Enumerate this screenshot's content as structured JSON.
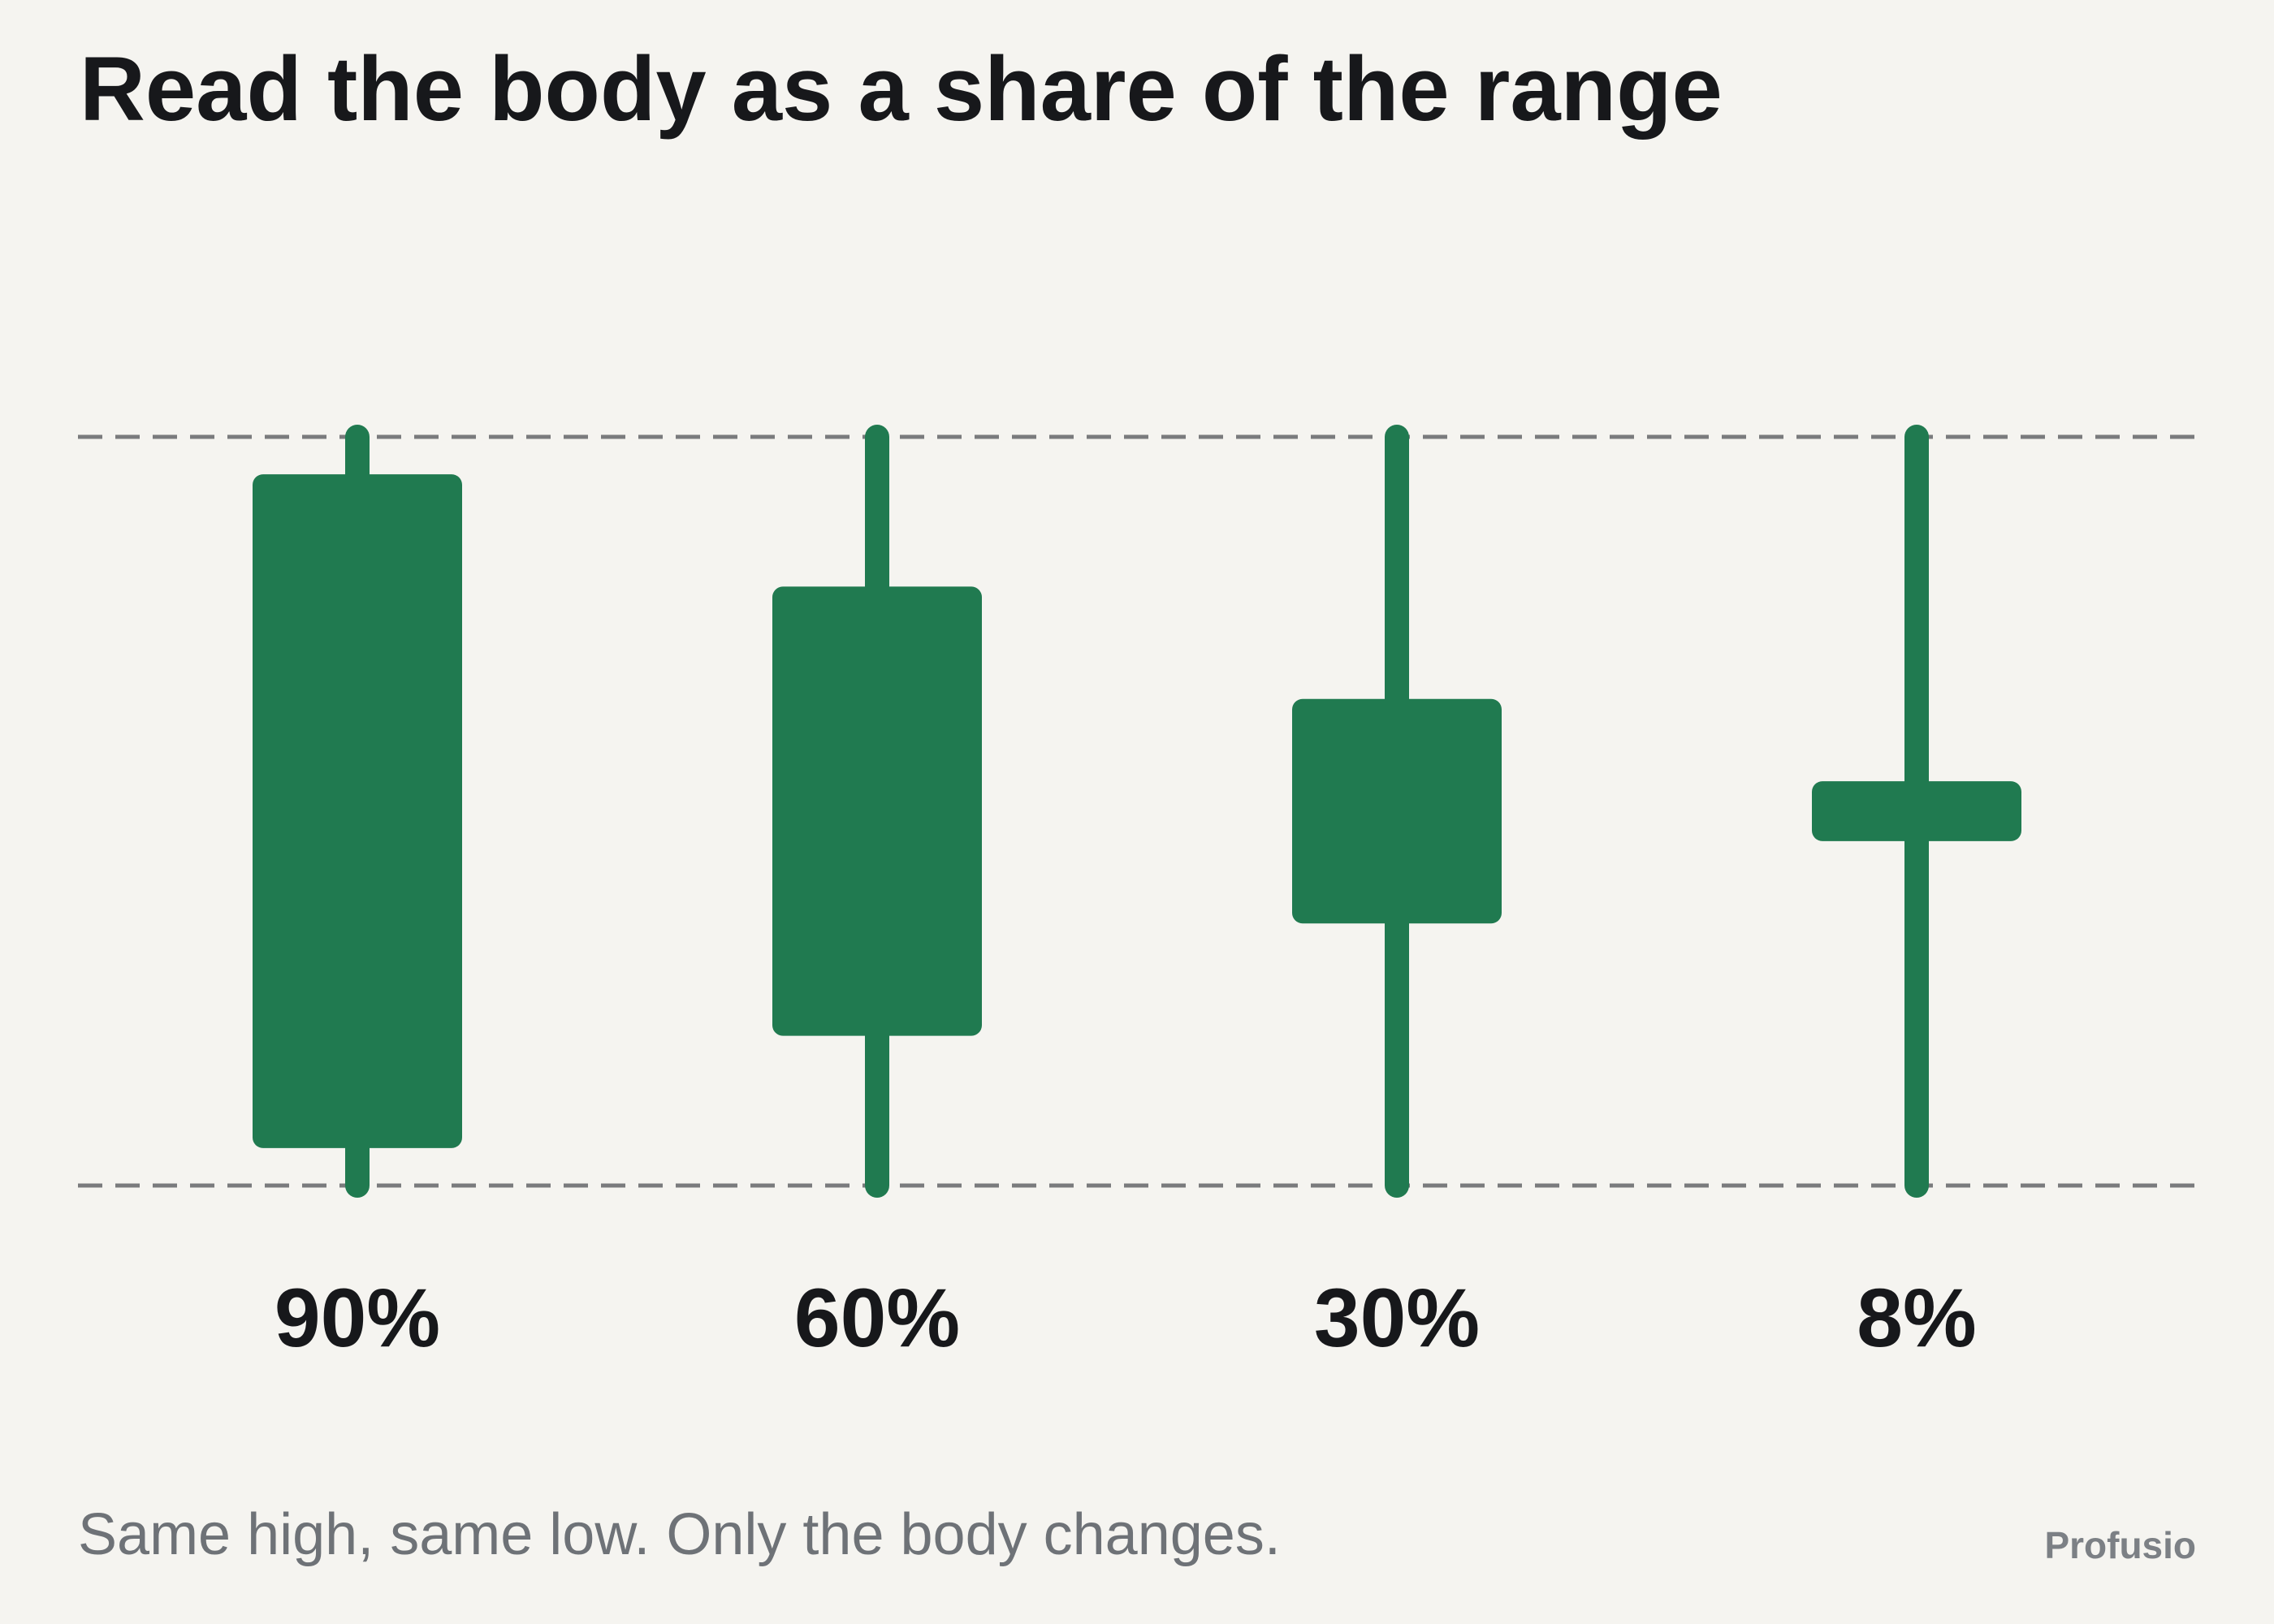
{
  "title": "Read the body as a share of the range",
  "caption": "Same high, same low. Only the body changes.",
  "brand": "Profusio",
  "colors": {
    "background": "#f5f4f0",
    "candle": "#207a50",
    "reference_line": "#7a7b7d",
    "label": "#17181b",
    "caption": "#6e7277"
  },
  "chart_data": {
    "type": "candlestick",
    "categories": [
      "90%",
      "60%",
      "30%",
      "8%"
    ],
    "range": {
      "low": 0,
      "high": 1
    },
    "series": [
      {
        "candles": [
          {
            "label": "90%",
            "body_share": 0.9,
            "low": 0,
            "high": 1,
            "open": 0.05,
            "close": 0.95
          },
          {
            "label": "60%",
            "body_share": 0.6,
            "low": 0,
            "high": 1,
            "open": 0.2,
            "close": 0.8
          },
          {
            "label": "30%",
            "body_share": 0.3,
            "low": 0,
            "high": 1,
            "open": 0.35,
            "close": 0.65
          },
          {
            "label": "8%",
            "body_share": 0.08,
            "low": 0,
            "high": 1,
            "open": 0.46,
            "close": 0.54
          }
        ]
      }
    ],
    "reference_lines": [
      "high",
      "low"
    ],
    "reference_line_style": "dashed",
    "grid": false,
    "legend": "none"
  }
}
